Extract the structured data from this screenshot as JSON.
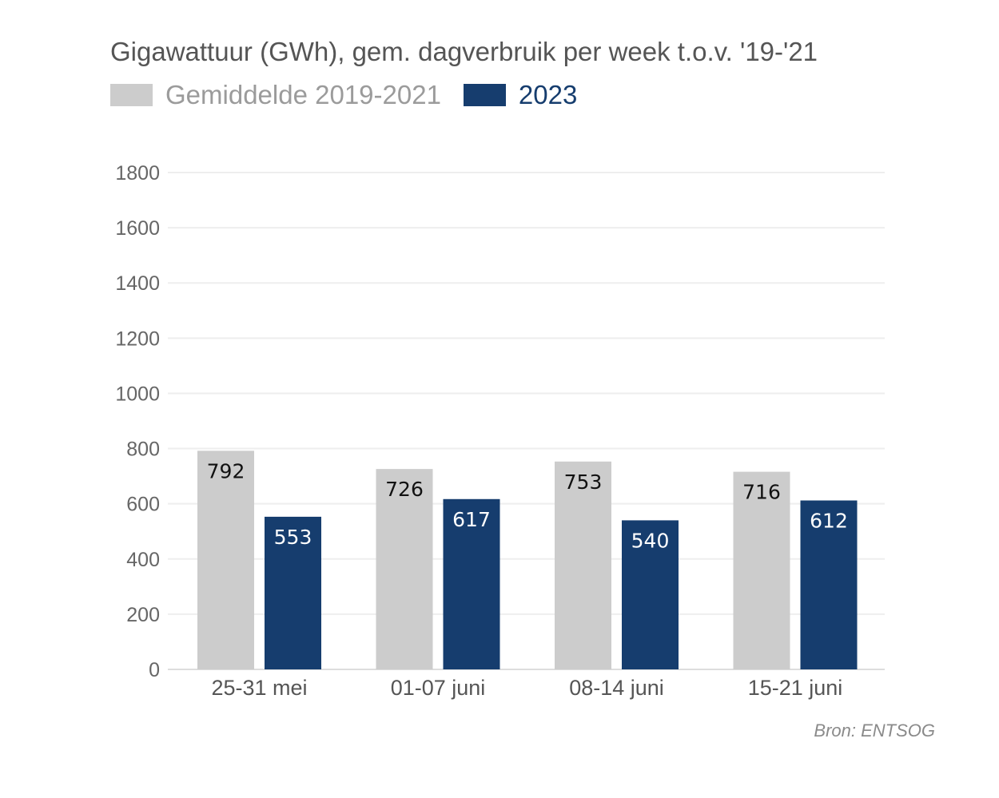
{
  "title": "Gigawattuur (GWh), gem. dagverbruik per week t.o.v. '19-'21",
  "source": "Bron: ENTSOG",
  "chart_data": {
    "type": "bar",
    "categories": [
      "25-31 mei",
      "01-07 juni",
      "08-14 juni",
      "15-21 juni"
    ],
    "series": [
      {
        "name": "Gemiddelde 2019-2021",
        "values": [
          792,
          726,
          753,
          716
        ],
        "color": "#cccccc",
        "label_color": "#555555"
      },
      {
        "name": "2023",
        "values": [
          553,
          617,
          540,
          612
        ],
        "color": "#163d6e",
        "label_color": "#163d6e"
      }
    ],
    "yticks": [
      "0",
      "200",
      "400",
      "600",
      "800",
      "1000",
      "1200",
      "1400",
      "1600",
      "1800"
    ],
    "ylim": [
      0,
      1800
    ],
    "grid": true,
    "legend": "top-left",
    "data_labels": true
  }
}
